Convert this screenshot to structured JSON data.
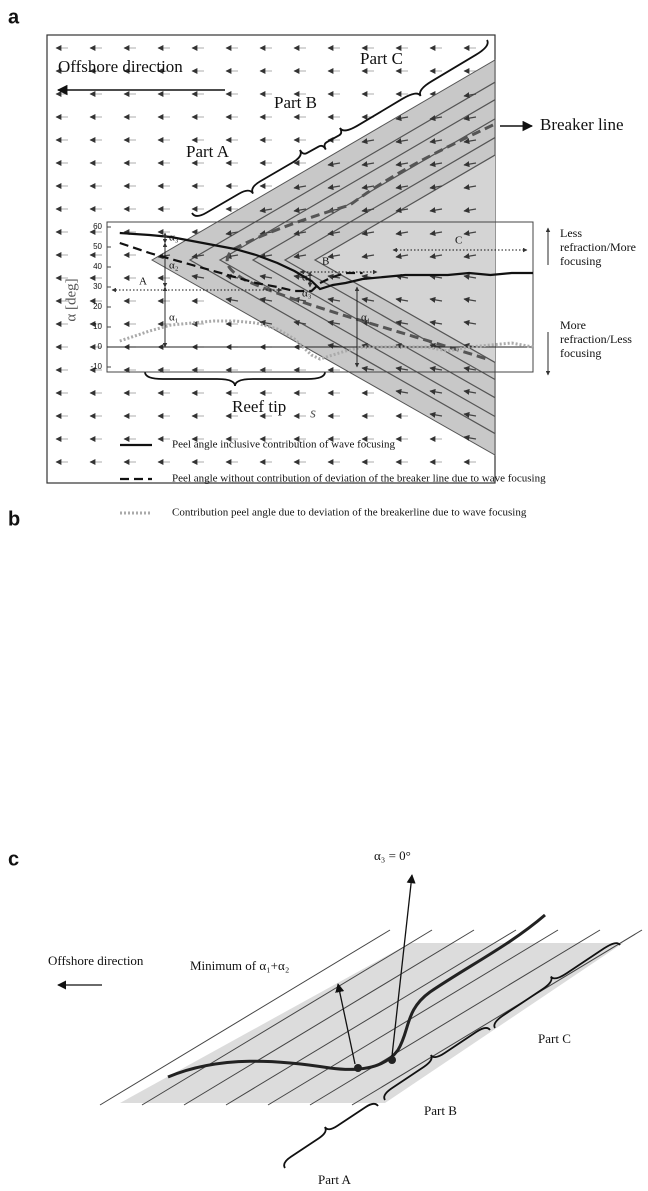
{
  "panel_a": {
    "label": "a",
    "offshore": "Offshore direction",
    "part_a": "Part A",
    "part_b": "Part B",
    "part_c": "Part C",
    "breaker": "Breaker line",
    "reef_tip": "Reef tip"
  },
  "chart_data": {
    "label": "b",
    "type": "line",
    "ylabel": "α [deg]",
    "xlabel": "s",
    "x": [
      3,
      10,
      15,
      20,
      25,
      30,
      35,
      40,
      44,
      48,
      50,
      53,
      56,
      60,
      65,
      70,
      75,
      80,
      85,
      90,
      95,
      100
    ],
    "xlim": [
      0,
      100
    ],
    "ylim": [
      -10,
      60
    ],
    "yticks": [
      -10,
      0,
      10,
      20,
      30,
      40,
      50,
      60
    ],
    "series": [
      {
        "name": "Peel angle inclusive contribution of wave focusing",
        "color": "#111111",
        "style": "solid",
        "values": [
          57,
          56,
          55,
          53,
          51,
          49,
          46,
          42,
          38,
          33,
          29,
          31,
          32,
          34,
          35,
          36,
          36,
          36,
          37,
          36,
          37,
          37
        ]
      },
      {
        "name": "Peel angle without contribution of deviation of the breaker line due to wave focusing",
        "color": "#111111",
        "style": "dashed",
        "values": [
          52,
          47,
          44,
          41,
          38,
          35,
          32,
          30,
          28,
          28,
          32,
          35,
          37,
          37,
          null,
          null,
          null,
          null,
          null,
          null,
          null,
          null
        ]
      },
      {
        "name": "Contribution peel angle due to deviation of the breakerline due to wave focusing",
        "color": "#aaaaaa",
        "style": "dotted",
        "values": [
          3,
          8,
          11,
          12,
          13,
          13,
          12,
          9,
          4,
          -4,
          -6,
          -4,
          -2,
          0,
          0,
          0,
          0,
          -2,
          0,
          1,
          2,
          0
        ]
      }
    ],
    "annotations": {
      "a": "A",
      "b": "B",
      "c": "C",
      "alpha1": "α₁",
      "alpha2": "α₂",
      "alpha3": "α₃",
      "less": "Less refraction/More focusing",
      "more": "More refraction/Less focusing"
    }
  },
  "panel_c": {
    "label": "c",
    "minimum": "Minimum of α₁+α₂",
    "alpha3_zero": "α₃ = 0°",
    "offshore": "Offshore direction",
    "part_a": "Part A",
    "part_b": "Part B",
    "part_c": "Part C"
  }
}
